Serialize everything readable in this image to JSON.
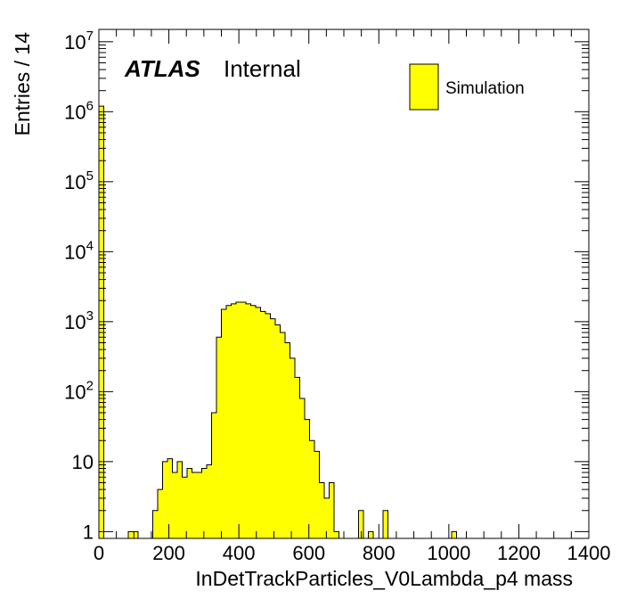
{
  "chart_data": {
    "type": "bar",
    "title": "",
    "xlabel": "InDetTrackParticles_V0Lambda_p4 mass",
    "ylabel": "Entries / 14",
    "xlim": [
      0,
      1400
    ],
    "ylim": [
      0.8,
      15000000
    ],
    "log_y": true,
    "bin_width": 14,
    "x_ticks": [
      "0",
      "200",
      "400",
      "600",
      "800",
      "1000",
      "1200",
      "1400"
    ],
    "y_ticks": [
      {
        "base": "1",
        "exp": ""
      },
      {
        "base": "10",
        "exp": ""
      },
      {
        "base": "10",
        "exp": "2"
      },
      {
        "base": "10",
        "exp": "3"
      },
      {
        "base": "10",
        "exp": "4"
      },
      {
        "base": "10",
        "exp": "5"
      },
      {
        "base": "10",
        "exp": "6"
      },
      {
        "base": "10",
        "exp": "7"
      }
    ],
    "atlas_label": "ATLAS",
    "atlas_sublabel": "Internal",
    "legend": {
      "label": "Simulation",
      "position": "top-right",
      "color": "#ffff00"
    },
    "fill_color": "#ffff00",
    "line_color": "#000000",
    "series": [
      {
        "name": "Simulation",
        "bins": [
          [
            0,
            1200000
          ],
          [
            84,
            1
          ],
          [
            98,
            1
          ],
          [
            154,
            2
          ],
          [
            168,
            4
          ],
          [
            182,
            10
          ],
          [
            196,
            11
          ],
          [
            210,
            7
          ],
          [
            224,
            10
          ],
          [
            238,
            6
          ],
          [
            252,
            8
          ],
          [
            266,
            7
          ],
          [
            280,
            7
          ],
          [
            294,
            8
          ],
          [
            308,
            9
          ],
          [
            322,
            50
          ],
          [
            336,
            600
          ],
          [
            350,
            1500
          ],
          [
            364,
            1700
          ],
          [
            378,
            1800
          ],
          [
            392,
            1900
          ],
          [
            406,
            1900
          ],
          [
            420,
            1800
          ],
          [
            434,
            1700
          ],
          [
            448,
            1600
          ],
          [
            462,
            1400
          ],
          [
            476,
            1300
          ],
          [
            490,
            1100
          ],
          [
            504,
            900
          ],
          [
            518,
            700
          ],
          [
            532,
            500
          ],
          [
            546,
            300
          ],
          [
            560,
            160
          ],
          [
            574,
            80
          ],
          [
            588,
            40
          ],
          [
            602,
            20
          ],
          [
            616,
            14
          ],
          [
            630,
            5
          ],
          [
            644,
            3
          ],
          [
            658,
            5
          ],
          [
            672,
            1
          ],
          [
            742,
            2
          ],
          [
            770,
            1
          ],
          [
            812,
            2
          ],
          [
            1008,
            1
          ]
        ]
      }
    ]
  }
}
